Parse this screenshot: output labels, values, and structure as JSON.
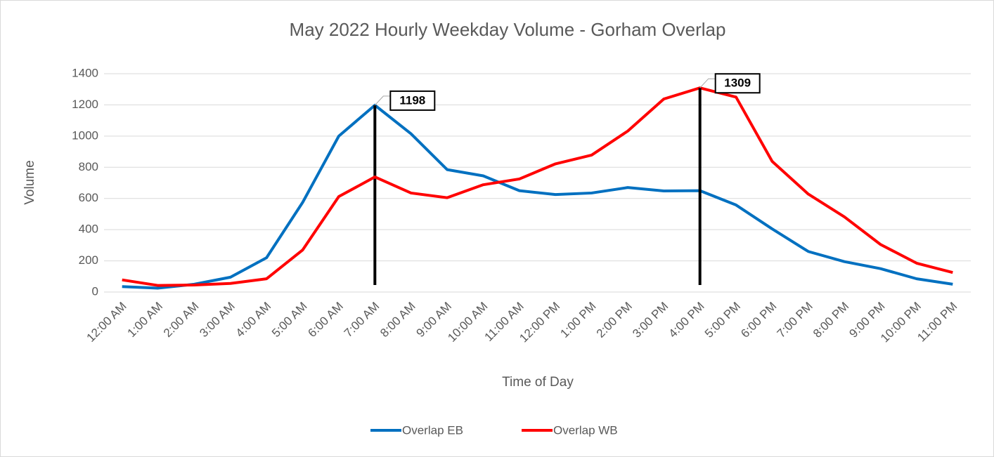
{
  "chart_data": {
    "type": "line",
    "title": "May 2022 Hourly Weekday Volume - Gorham Overlap",
    "x_label": "Time of Day",
    "y_label": "Volume",
    "categories": [
      "12:00 AM",
      "1:00 AM",
      "2:00 AM",
      "3:00 AM",
      "4:00 AM",
      "5:00 AM",
      "6:00 AM",
      "7:00 AM",
      "8:00 AM",
      "9:00 AM",
      "10:00 AM",
      "11:00 AM",
      "12:00 PM",
      "1:00 PM",
      "2:00 PM",
      "3:00 PM",
      "4:00 PM",
      "5:00 PM",
      "6:00 PM",
      "7:00 PM",
      "8:00 PM",
      "9:00 PM",
      "10:00 PM",
      "11:00 PM"
    ],
    "series": [
      {
        "name": "Overlap EB",
        "color": "#0070c0",
        "values": [
          35,
          25,
          50,
          95,
          220,
          575,
          1000,
          1198,
          1015,
          785,
          745,
          650,
          625,
          635,
          670,
          648,
          650,
          558,
          405,
          260,
          195,
          150,
          85,
          50
        ],
        "value_labels": [
          null,
          null,
          null,
          null,
          null,
          null,
          null,
          "1198",
          null,
          null,
          null,
          null,
          null,
          null,
          null,
          null,
          null,
          null,
          null,
          null,
          null,
          null,
          null,
          null
        ]
      },
      {
        "name": "Overlap WB",
        "color": "#ff0000",
        "values": [
          78,
          42,
          45,
          55,
          85,
          270,
          612,
          738,
          635,
          605,
          688,
          725,
          822,
          878,
          1032,
          1238,
          1309,
          1250,
          838,
          628,
          482,
          305,
          185,
          125
        ],
        "value_labels": [
          null,
          null,
          null,
          null,
          null,
          null,
          null,
          null,
          null,
          null,
          null,
          null,
          null,
          null,
          null,
          null,
          "1309",
          null,
          null,
          null,
          null,
          null,
          null,
          null
        ]
      }
    ],
    "ylim": [
      0,
      1400
    ],
    "yticks": [
      0,
      200,
      400,
      600,
      800,
      1000,
      1200,
      1400
    ],
    "grid": true,
    "legend": "bottom"
  }
}
